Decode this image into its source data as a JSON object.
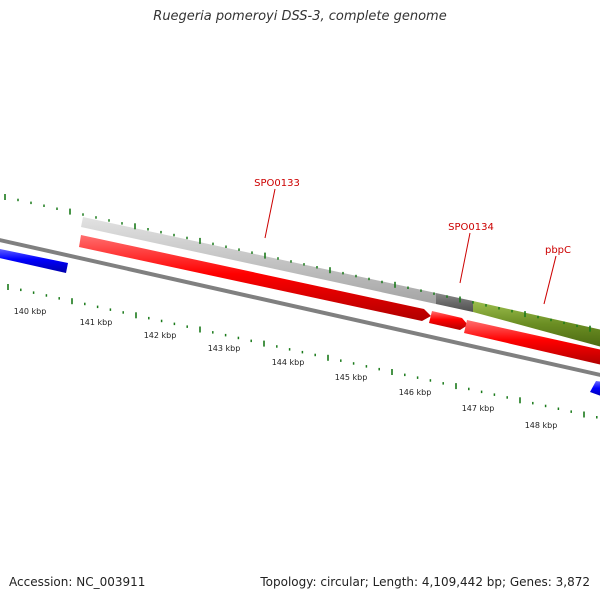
{
  "title": "Ruegeria pomeroyi DSS-3, complete genome",
  "footer": {
    "accession": "Accession: NC_003911",
    "summary": "Topology: circular; Length: 4,109,442 bp; Genes: 3,872"
  },
  "genes": [
    {
      "label": "SPO0133"
    },
    {
      "label": "SPO0134"
    },
    {
      "label": "pbpC"
    }
  ],
  "scale_labels": [
    "140 kbp",
    "141 kbp",
    "142 kbp",
    "143 kbp",
    "144 kbp",
    "145 kbp",
    "146 kbp",
    "147 kbp",
    "148 kbp"
  ],
  "colors": {
    "cds": "#ff0000",
    "other_feature": "#0000ff",
    "tick": "#1a7a1a",
    "backbone": "#808080",
    "gene_label": "#cc0000",
    "cog_light_gray": "#c8c8c8",
    "cog_dark_gray": "#707070",
    "cog_olive": "#6b8e23"
  }
}
